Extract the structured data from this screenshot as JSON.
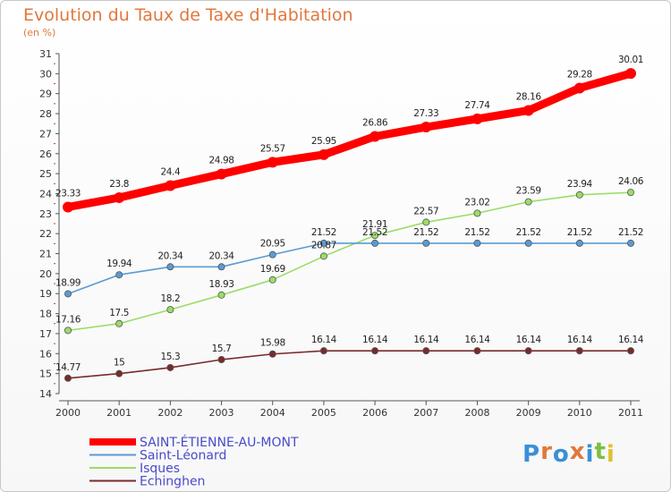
{
  "title": "Evolution du Taux de Taxe d'Habitation",
  "subtitle": "(en %)",
  "logo": {
    "text": "Proxiti",
    "colors": [
      "#3a8fd6",
      "#e0783c",
      "#3a8fd6",
      "#e0783c",
      "#3a8fd6",
      "#7bc043",
      "#e0c030"
    ]
  },
  "chart_data": {
    "type": "line",
    "x": [
      2000,
      2001,
      2002,
      2003,
      2004,
      2005,
      2006,
      2007,
      2008,
      2009,
      2010,
      2011
    ],
    "ylim": [
      14,
      31
    ],
    "yticks": [
      14,
      15,
      16,
      17,
      18,
      19,
      20,
      21,
      22,
      23,
      24,
      25,
      26,
      27,
      28,
      29,
      30,
      31
    ],
    "grid": false,
    "legend_position": "bottom-left",
    "series": [
      {
        "name": "SAINT-ÉTIENNE-AU-MONT",
        "color": "#ff0000",
        "values": [
          23.33,
          23.8,
          24.4,
          24.98,
          25.57,
          25.95,
          26.86,
          27.33,
          27.74,
          28.16,
          29.28,
          30.01
        ],
        "labels": [
          "23.33",
          "23.8",
          "24.4",
          "24.98",
          "25.57",
          "25.95",
          "26.86",
          "27.33",
          "27.74",
          "28.16",
          "29.28",
          "30.01"
        ]
      },
      {
        "name": "Saint-Léonard",
        "color": "#5b9bd5",
        "values": [
          18.99,
          19.94,
          20.34,
          20.34,
          20.95,
          21.52,
          21.52,
          21.52,
          21.52,
          21.52,
          21.52,
          21.52
        ],
        "labels": [
          "18.99",
          "19.94",
          "20.34",
          "20.34",
          "20.95",
          "21.52",
          "21.52",
          "21.52",
          "21.52",
          "21.52",
          "21.52",
          "21.52"
        ]
      },
      {
        "name": "Isques",
        "color": "#99dd66",
        "values": [
          17.16,
          17.5,
          18.2,
          18.93,
          19.69,
          20.87,
          21.91,
          22.57,
          23.02,
          23.59,
          23.94,
          24.06
        ],
        "labels": [
          "17.16",
          "17.5",
          "18.2",
          "18.93",
          "19.69",
          "20.87",
          "21.91",
          "22.57",
          "23.02",
          "23.59",
          "23.94",
          "24.06"
        ]
      },
      {
        "name": "Echinghen",
        "color": "#7a2a2a",
        "values": [
          14.77,
          15,
          15.3,
          15.7,
          15.98,
          16.14,
          16.14,
          16.14,
          16.14,
          16.14,
          16.14,
          16.14
        ],
        "labels": [
          "14.77",
          "15",
          "15.3",
          "15.7",
          "15.98",
          "16.14",
          "16.14",
          "16.14",
          "16.14",
          "16.14",
          "16.14",
          "16.14"
        ]
      }
    ]
  }
}
